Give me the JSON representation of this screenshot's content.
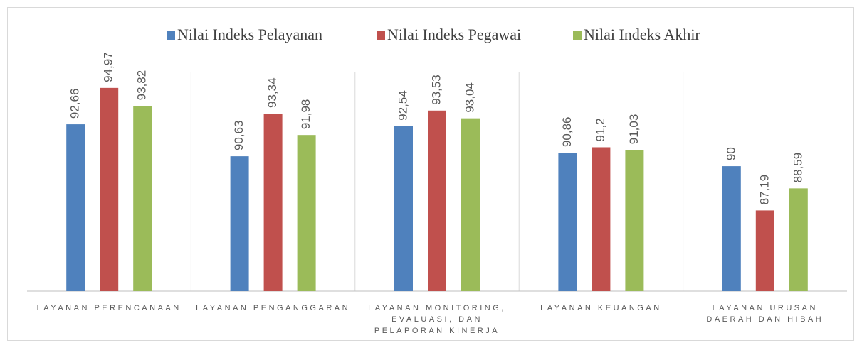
{
  "chart_data": {
    "type": "bar",
    "categories": [
      "LAYANAN PERENCANAAN",
      "LAYANAN PENGANGGARAN",
      "LAYANAN MONITORING, EVALUASI, DAN PELAPORAN KINERJA",
      "LAYANAN KEUANGAN",
      "LAYANAN URUSAN DAERAH DAN HIBAH"
    ],
    "series": [
      {
        "name": "Nilai Indeks Pelayanan",
        "color": "#4f81bd",
        "values": [
          92.66,
          90.63,
          92.54,
          90.86,
          90
        ],
        "value_labels": [
          "92,66",
          "90,63",
          "92,54",
          "90,86",
          "90"
        ]
      },
      {
        "name": "Nilai Indeks Pegawai",
        "color": "#c0504d",
        "values": [
          94.97,
          93.34,
          93.53,
          91.2,
          87.19
        ],
        "value_labels": [
          "94,97",
          "93,34",
          "93,53",
          "91,2",
          "87,19"
        ]
      },
      {
        "name": "Nilai Indeks Akhir",
        "color": "#9bbb59",
        "values": [
          93.82,
          91.98,
          93.04,
          91.03,
          88.59
        ],
        "value_labels": [
          "93,82",
          "91,98",
          "93,04",
          "91,03",
          "88,59"
        ]
      }
    ],
    "ylim": [
      82.07,
      96
    ],
    "legend": "top"
  }
}
